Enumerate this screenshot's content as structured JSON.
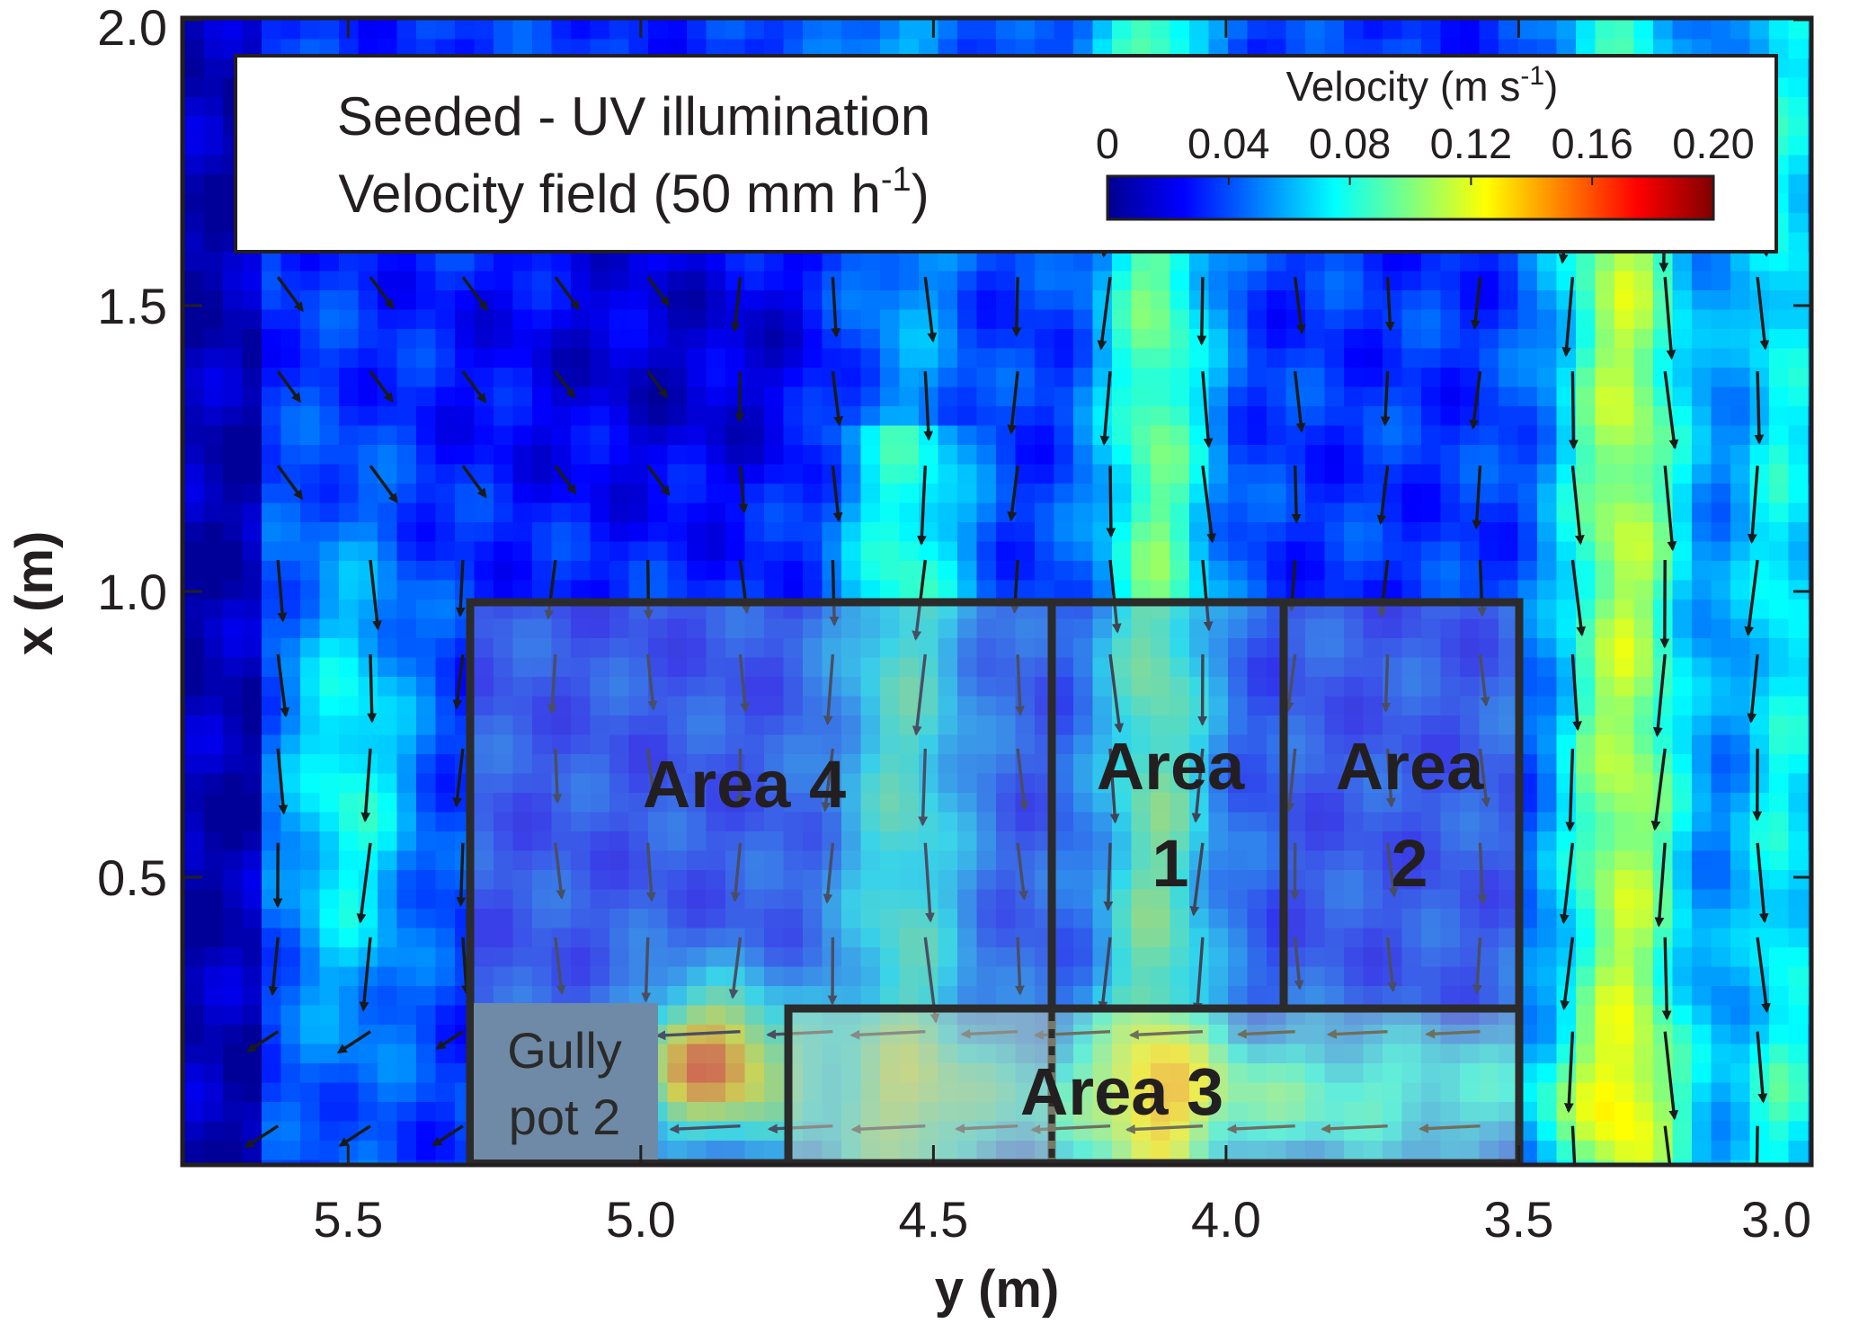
{
  "chart_data": {
    "type": "heatmap",
    "title_lines": [
      "Seeded - UV illumination",
      "Velocity field (50 mm h",
      ")"
    ],
    "title_superscript": "-1",
    "xlabel": "y (m)",
    "ylabel": "x (m)",
    "x_axis_reversed": true,
    "xlim": [
      5.78,
      3.0
    ],
    "ylim": [
      0.0,
      2.0
    ],
    "xticks": [
      5.5,
      5.0,
      4.5,
      4.0,
      3.5,
      3.0
    ],
    "xtick_labels": [
      "5.5",
      "5.0",
      "4.5",
      "4.0",
      "3.5",
      "3.0"
    ],
    "yticks": [
      0.5,
      1.0,
      1.5,
      2.0
    ],
    "ytick_labels": [
      "0.5",
      "1.0",
      "1.5",
      "2.0"
    ],
    "grid": false,
    "colorbar": {
      "title": "Velocity (m s",
      "title_superscript": "-1",
      "title_suffix": ")",
      "range": [
        0,
        0.2
      ],
      "ticks": [
        0,
        0.04,
        0.08,
        0.12,
        0.16,
        0.2
      ],
      "tick_labels": [
        "0",
        "0.04",
        "0.08",
        "0.12",
        "0.16",
        "0.20"
      ],
      "colormap": "jet",
      "placement": "top-right"
    },
    "regions": [
      {
        "label": "Area 4",
        "label_lines": [
          "Area 4"
        ],
        "y_range": [
          5.3,
          4.3
        ],
        "x_range": [
          0.0,
          1.0
        ]
      },
      {
        "label": "Area 1",
        "label_lines": [
          "Area",
          "1"
        ],
        "y_range": [
          4.3,
          3.9
        ],
        "x_range": [
          0.3,
          1.0
        ]
      },
      {
        "label": "Area 2",
        "label_lines": [
          "Area",
          "2"
        ],
        "y_range": [
          3.9,
          3.5
        ],
        "x_range": [
          0.3,
          1.0
        ]
      },
      {
        "label": "Area 3",
        "label_lines": [
          "Area 3"
        ],
        "y_range": [
          4.76,
          3.5
        ],
        "x_range": [
          0.0,
          0.3
        ]
      }
    ],
    "gully_pot": {
      "label_lines": [
        "Gully",
        "pot 2"
      ],
      "y_range": [
        5.3,
        4.98
      ],
      "x_range": [
        0.0,
        0.31
      ]
    },
    "velocity_field_notes": "Predominantly downward flow (toward x = 0) with strong streams near y = 3.25-3.45 and y = 4.1; flow turns toward the gully pot along x < 0.25"
  }
}
